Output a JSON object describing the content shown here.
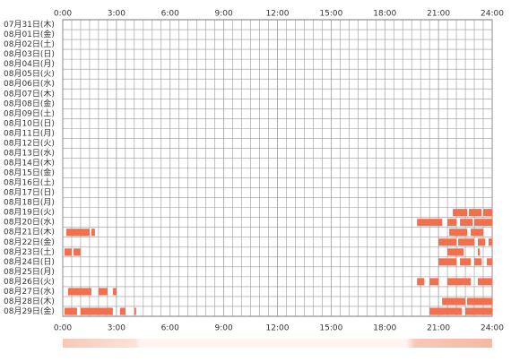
{
  "chart_data": {
    "type": "timeline",
    "categories": [
      "07月31日(木)",
      "08月01日(金)",
      "08月02日(土)",
      "08月03日(日)",
      "08月04日(月)",
      "08月05日(火)",
      "08月06日(水)",
      "08月07日(木)",
      "08月08日(金)",
      "08月09日(土)",
      "08月10日(日)",
      "08月11日(月)",
      "08月12日(火)",
      "08月13日(水)",
      "08月14日(木)",
      "08月15日(金)",
      "08月16日(土)",
      "08月17日(日)",
      "08月18日(月)",
      "08月19日(火)",
      "08月20日(水)",
      "08月21日(木)",
      "08月22日(金)",
      "08月23日(土)",
      "08月24日(日)",
      "08月25日(月)",
      "08月26日(火)",
      "08月27日(水)",
      "08月28日(木)",
      "08月29日(金)"
    ],
    "segments": [
      [],
      [],
      [],
      [],
      [],
      [],
      [],
      [],
      [],
      [],
      [],
      [],
      [],
      [],
      [],
      [],
      [],
      [],
      [],
      [
        [
          21.8,
          22.6
        ],
        [
          22.7,
          23.4
        ],
        [
          23.5,
          24
        ]
      ],
      [
        [
          19.8,
          21.2
        ],
        [
          21.5,
          22.0
        ],
        [
          22.2,
          22.9
        ],
        [
          23.0,
          24
        ]
      ],
      [
        [
          0.2,
          1.5
        ],
        [
          1.6,
          1.8
        ],
        [
          21.6,
          22.6
        ],
        [
          22.8,
          23.5
        ]
      ],
      [
        [
          21.0,
          22.0
        ],
        [
          22.1,
          23.0
        ],
        [
          23.2,
          23.6
        ],
        [
          23.8,
          24
        ]
      ],
      [
        [
          0.1,
          0.5
        ],
        [
          0.6,
          1.0
        ],
        [
          21.5,
          22.4
        ],
        [
          23.2,
          23.3
        ]
      ],
      [
        [
          21.0,
          22.0
        ],
        [
          22.2,
          22.8
        ],
        [
          23.0,
          23.4
        ],
        [
          23.7,
          24
        ]
      ],
      [],
      [
        [
          19.8,
          20.2
        ],
        [
          20.5,
          21.0
        ],
        [
          21.5,
          22.8
        ],
        [
          23.2,
          24
        ]
      ],
      [
        [
          0.3,
          1.6
        ],
        [
          2.0,
          2.5
        ],
        [
          2.8,
          3.0
        ]
      ],
      [
        [
          21.2,
          22.5
        ],
        [
          22.6,
          24
        ]
      ],
      [
        [
          0.1,
          0.8
        ],
        [
          1.0,
          2.8
        ],
        [
          3.2,
          3.5
        ],
        [
          4.0,
          4.1
        ],
        [
          20.5,
          22.3
        ],
        [
          22.5,
          24
        ]
      ]
    ],
    "xlim": [
      0,
      24
    ],
    "xticks": [
      {
        "value": 0,
        "label": "0:00"
      },
      {
        "value": 3,
        "label": "3:00"
      },
      {
        "value": 6,
        "label": "6:00"
      },
      {
        "value": 9,
        "label": "9:00"
      },
      {
        "value": 12,
        "label": "12:00"
      },
      {
        "value": 15,
        "label": "15:00"
      },
      {
        "value": 18,
        "label": "18:00"
      },
      {
        "value": 21,
        "label": "21:00"
      },
      {
        "value": 24,
        "label": "24:00"
      }
    ],
    "color": "#f2704e",
    "grid": true
  }
}
